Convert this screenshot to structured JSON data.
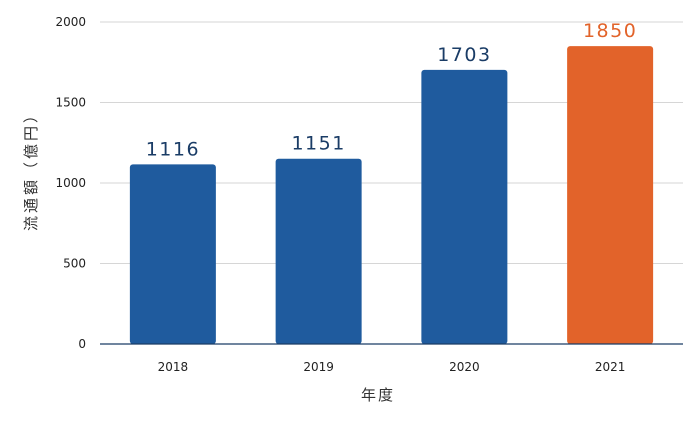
{
  "chart_data": {
    "type": "bar",
    "title": "",
    "xlabel": "年度",
    "ylabel": "流通額（億円）",
    "categories": [
      "2018",
      "2019",
      "2020",
      "2021"
    ],
    "values": [
      1116,
      1151,
      1703,
      1850
    ],
    "value_labels": [
      "1116",
      "1151",
      "1703",
      "1850"
    ],
    "ylim": [
      0,
      2000
    ],
    "yticks": [
      0,
      500,
      1000,
      1500,
      2000
    ],
    "ytick_labels": [
      "0",
      "500",
      "1000",
      "1500",
      "2000"
    ],
    "grid": true,
    "bar_colors": [
      "#1f5b9e",
      "#1f5b9e",
      "#1f5b9e",
      "#e2632a"
    ],
    "label_colors": [
      "#1a3c66",
      "#1a3c66",
      "#1a3c66",
      "#e2632a"
    ]
  }
}
